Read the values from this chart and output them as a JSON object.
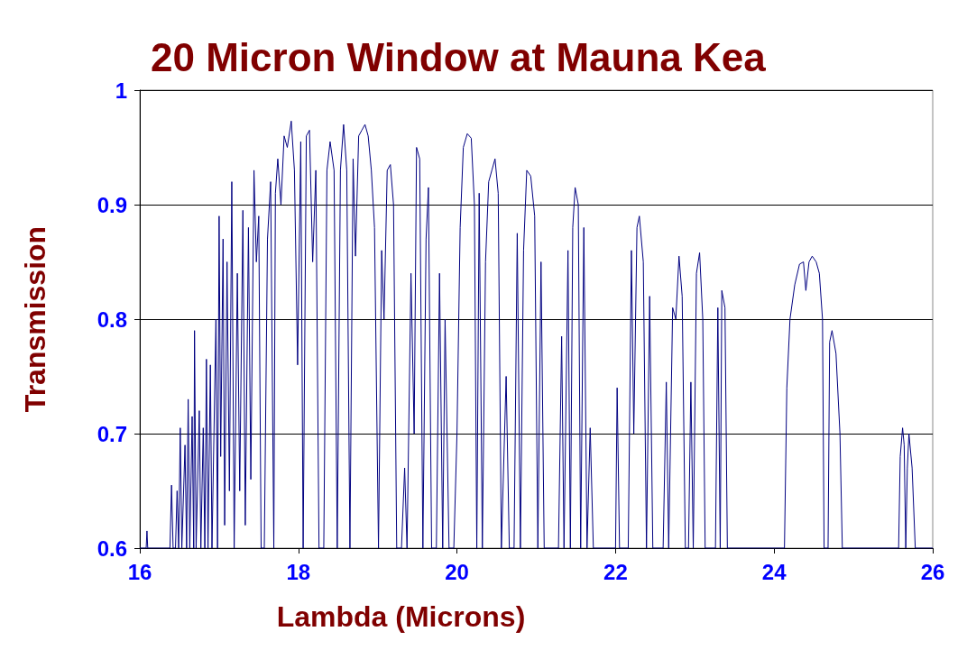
{
  "chart_data": {
    "type": "line",
    "title": "20 Micron Window at Mauna Kea",
    "xlabel": "Lambda (Microns)",
    "ylabel": "Transmission",
    "x": [
      16.0,
      16.08,
      16.09,
      16.1,
      16.38,
      16.4,
      16.42,
      16.45,
      16.47,
      16.49,
      16.51,
      16.53,
      16.57,
      16.59,
      16.61,
      16.63,
      16.66,
      16.68,
      16.69,
      16.71,
      16.75,
      16.77,
      16.8,
      16.82,
      16.84,
      16.86,
      16.89,
      16.91,
      16.96,
      16.98,
      17.0,
      17.02,
      17.05,
      17.07,
      17.1,
      17.13,
      17.16,
      17.19,
      17.23,
      17.26,
      17.3,
      17.33,
      17.37,
      17.4,
      17.44,
      17.47,
      17.5,
      17.53,
      17.57,
      17.61,
      17.65,
      17.69,
      17.71,
      17.74,
      17.78,
      17.82,
      17.86,
      17.91,
      17.95,
      17.99,
      18.03,
      18.06,
      18.1,
      18.14,
      18.18,
      18.22,
      18.26,
      18.32,
      18.36,
      18.4,
      18.45,
      18.49,
      18.53,
      18.57,
      18.61,
      18.65,
      18.69,
      18.72,
      18.76,
      18.8,
      18.84,
      18.88,
      18.92,
      18.96,
      19.01,
      19.05,
      19.08,
      19.12,
      19.16,
      19.2,
      19.24,
      19.3,
      19.34,
      19.37,
      19.42,
      19.46,
      19.49,
      19.53,
      19.57,
      19.61,
      19.64,
      19.68,
      19.74,
      19.78,
      19.82,
      19.85,
      19.9,
      19.96,
      20.0,
      20.04,
      20.08,
      20.13,
      20.18,
      20.22,
      20.25,
      20.28,
      20.32,
      20.36,
      20.4,
      20.44,
      20.48,
      20.52,
      20.56,
      20.62,
      20.66,
      20.72,
      20.76,
      20.8,
      20.84,
      20.88,
      20.93,
      20.98,
      21.02,
      21.06,
      21.1,
      21.28,
      21.32,
      21.35,
      21.4,
      21.43,
      21.46,
      21.49,
      21.53,
      21.56,
      21.6,
      21.64,
      21.68,
      21.72,
      22.0,
      22.02,
      22.05,
      22.16,
      22.2,
      22.23,
      22.27,
      22.3,
      22.35,
      22.39,
      22.43,
      22.47,
      22.6,
      22.64,
      22.67,
      22.72,
      22.76,
      22.8,
      22.84,
      22.88,
      22.92,
      22.95,
      22.98,
      23.02,
      23.06,
      23.1,
      23.13,
      23.26,
      23.29,
      23.32,
      23.34,
      23.38,
      23.41,
      24.13,
      24.16,
      24.2,
      24.26,
      24.32,
      24.37,
      24.4,
      24.44,
      24.48,
      24.53,
      24.57,
      24.61,
      24.63,
      24.68,
      24.7,
      24.73,
      24.78,
      24.83,
      24.86,
      25.57,
      25.59,
      25.62,
      25.64,
      25.66,
      25.68,
      25.7,
      25.74,
      25.78,
      26.0
    ],
    "series": [
      {
        "color": "#000080",
        "values": [
          0.6,
          0.6,
          0.615,
          0.6,
          0.6,
          0.655,
          0.6,
          0.6,
          0.65,
          0.6,
          0.705,
          0.6,
          0.69,
          0.6,
          0.73,
          0.6,
          0.715,
          0.6,
          0.79,
          0.6,
          0.72,
          0.6,
          0.705,
          0.6,
          0.765,
          0.6,
          0.76,
          0.6,
          0.8,
          0.6,
          0.89,
          0.68,
          0.87,
          0.62,
          0.85,
          0.65,
          0.92,
          0.6,
          0.84,
          0.65,
          0.895,
          0.62,
          0.88,
          0.66,
          0.93,
          0.85,
          0.89,
          0.6,
          0.6,
          0.87,
          0.92,
          0.6,
          0.91,
          0.94,
          0.9,
          0.96,
          0.95,
          0.973,
          0.93,
          0.76,
          0.955,
          0.6,
          0.96,
          0.965,
          0.85,
          0.93,
          0.6,
          0.6,
          0.93,
          0.955,
          0.93,
          0.6,
          0.93,
          0.97,
          0.93,
          0.6,
          0.94,
          0.855,
          0.96,
          0.965,
          0.97,
          0.96,
          0.93,
          0.88,
          0.6,
          0.86,
          0.8,
          0.93,
          0.935,
          0.9,
          0.6,
          0.6,
          0.67,
          0.6,
          0.84,
          0.7,
          0.95,
          0.94,
          0.6,
          0.87,
          0.915,
          0.6,
          0.6,
          0.84,
          0.6,
          0.8,
          0.6,
          0.6,
          0.7,
          0.88,
          0.95,
          0.962,
          0.958,
          0.9,
          0.6,
          0.91,
          0.6,
          0.85,
          0.92,
          0.93,
          0.94,
          0.91,
          0.6,
          0.75,
          0.6,
          0.6,
          0.875,
          0.6,
          0.86,
          0.93,
          0.925,
          0.89,
          0.6,
          0.85,
          0.6,
          0.6,
          0.785,
          0.6,
          0.86,
          0.6,
          0.88,
          0.915,
          0.9,
          0.6,
          0.88,
          0.6,
          0.705,
          0.6,
          0.6,
          0.74,
          0.6,
          0.6,
          0.86,
          0.7,
          0.88,
          0.89,
          0.85,
          0.6,
          0.82,
          0.6,
          0.6,
          0.745,
          0.6,
          0.81,
          0.8,
          0.855,
          0.82,
          0.6,
          0.6,
          0.745,
          0.6,
          0.84,
          0.858,
          0.8,
          0.6,
          0.6,
          0.81,
          0.6,
          0.825,
          0.81,
          0.6,
          0.6,
          0.74,
          0.8,
          0.83,
          0.848,
          0.85,
          0.825,
          0.85,
          0.855,
          0.85,
          0.84,
          0.8,
          0.6,
          0.6,
          0.78,
          0.79,
          0.77,
          0.7,
          0.6,
          0.6,
          0.68,
          0.705,
          0.69,
          0.6,
          0.67,
          0.7,
          0.67,
          0.6,
          0.6
        ]
      }
    ],
    "xlim": [
      16,
      26
    ],
    "xticks": [
      16,
      18,
      20,
      22,
      24,
      26
    ],
    "ylim": [
      0.6,
      1
    ],
    "yticks": [
      0.6,
      0.7,
      0.8,
      0.9,
      1
    ],
    "grid": "y",
    "marker": "none",
    "line_style": "solid"
  }
}
